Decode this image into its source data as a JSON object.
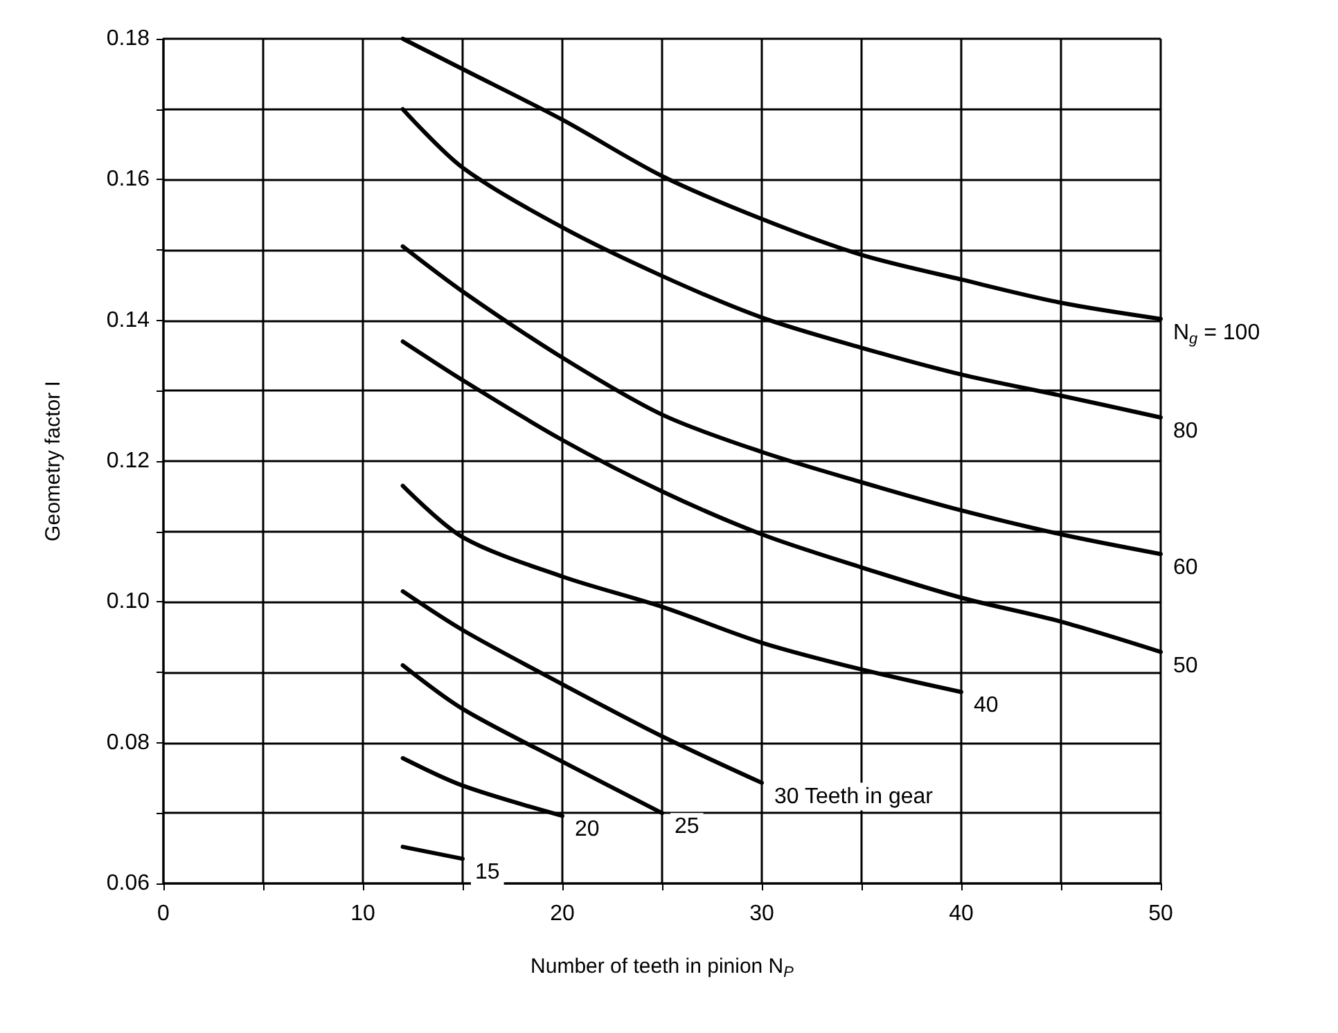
{
  "chart_data": {
    "type": "line",
    "xlabel": "Number of teeth in pinion N$_{P}$",
    "ylabel": "Geometry factor I",
    "xlim": [
      0,
      50
    ],
    "ylim": [
      0.06,
      0.18
    ],
    "xticks": [
      0,
      {
        "value": 5,
        "label": null
      },
      10,
      {
        "value": 15,
        "label": null
      },
      20,
      {
        "value": 25,
        "label": null
      },
      30,
      {
        "value": 35,
        "label": null
      },
      40,
      {
        "value": 45,
        "label": null
      },
      50
    ],
    "yticks": [
      {
        "value": 0.06,
        "label": "0.06"
      },
      {
        "value": 0.07,
        "label": null
      },
      {
        "value": 0.08,
        "label": "0.08"
      },
      {
        "value": 0.09,
        "label": null
      },
      {
        "value": 0.1,
        "label": "0.10"
      },
      {
        "value": 0.11,
        "label": null
      },
      {
        "value": 0.12,
        "label": "0.12"
      },
      {
        "value": 0.13,
        "label": null
      },
      {
        "value": 0.14,
        "label": "0.14"
      },
      {
        "value": 0.15,
        "label": null
      },
      {
        "value": 0.16,
        "label": "0.16"
      },
      {
        "value": 0.17,
        "label": null
      },
      {
        "value": 0.18,
        "label": "0.18"
      }
    ],
    "grid": true,
    "legend": false,
    "marker": "none",
    "line_style": "solid",
    "series": [
      {
        "name": "N$_{g}$ = 100",
        "color": "#000000",
        "x": [
          12,
          15,
          20,
          25,
          30,
          35,
          40,
          45,
          50
        ],
        "values": [
          0.18,
          0.1757,
          0.1685,
          0.1605,
          0.1544,
          0.1493,
          0.1458,
          0.1425,
          0.1402
        ]
      },
      {
        "name": "80",
        "color": "#000000",
        "x": [
          12,
          15,
          20,
          25,
          30,
          35,
          40,
          45,
          50
        ],
        "values": [
          0.17,
          0.1617,
          0.1532,
          0.1463,
          0.1404,
          0.1361,
          0.1323,
          0.1293,
          0.1262
        ]
      },
      {
        "name": "60",
        "color": "#000000",
        "x": [
          12,
          15,
          20,
          25,
          30,
          35,
          40,
          45,
          50
        ],
        "values": [
          0.1505,
          0.1441,
          0.1347,
          0.1266,
          0.1213,
          0.117,
          0.113,
          0.1096,
          0.1068
        ]
      },
      {
        "name": "50",
        "color": "#000000",
        "x": [
          12,
          15,
          20,
          25,
          30,
          35,
          40,
          45,
          50
        ],
        "values": [
          0.137,
          0.1315,
          0.123,
          0.1157,
          0.1096,
          0.1049,
          0.1006,
          0.0972,
          0.0929
        ]
      },
      {
        "name": "40",
        "color": "#000000",
        "x": [
          12,
          15,
          20,
          25,
          30,
          35,
          40
        ],
        "values": [
          0.1165,
          0.1092,
          0.1036,
          0.0993,
          0.0942,
          0.0904,
          0.0872
        ]
      },
      {
        "name": "30 Teeth in gear",
        "color": "#000000",
        "x": [
          12,
          15,
          20,
          25,
          30
        ],
        "values": [
          0.1015,
          0.096,
          0.0883,
          0.0809,
          0.0743
        ]
      },
      {
        "name": "25",
        "color": "#000000",
        "x": [
          12,
          15,
          20,
          25
        ],
        "values": [
          0.091,
          0.0848,
          0.0773,
          0.07
        ]
      },
      {
        "name": "20",
        "color": "#000000",
        "x": [
          12,
          15,
          20
        ],
        "values": [
          0.0778,
          0.0739,
          0.0696
        ]
      },
      {
        "name": "15",
        "color": "#000000",
        "x": [
          12,
          15
        ],
        "values": [
          0.0652,
          0.0635
        ]
      }
    ]
  }
}
